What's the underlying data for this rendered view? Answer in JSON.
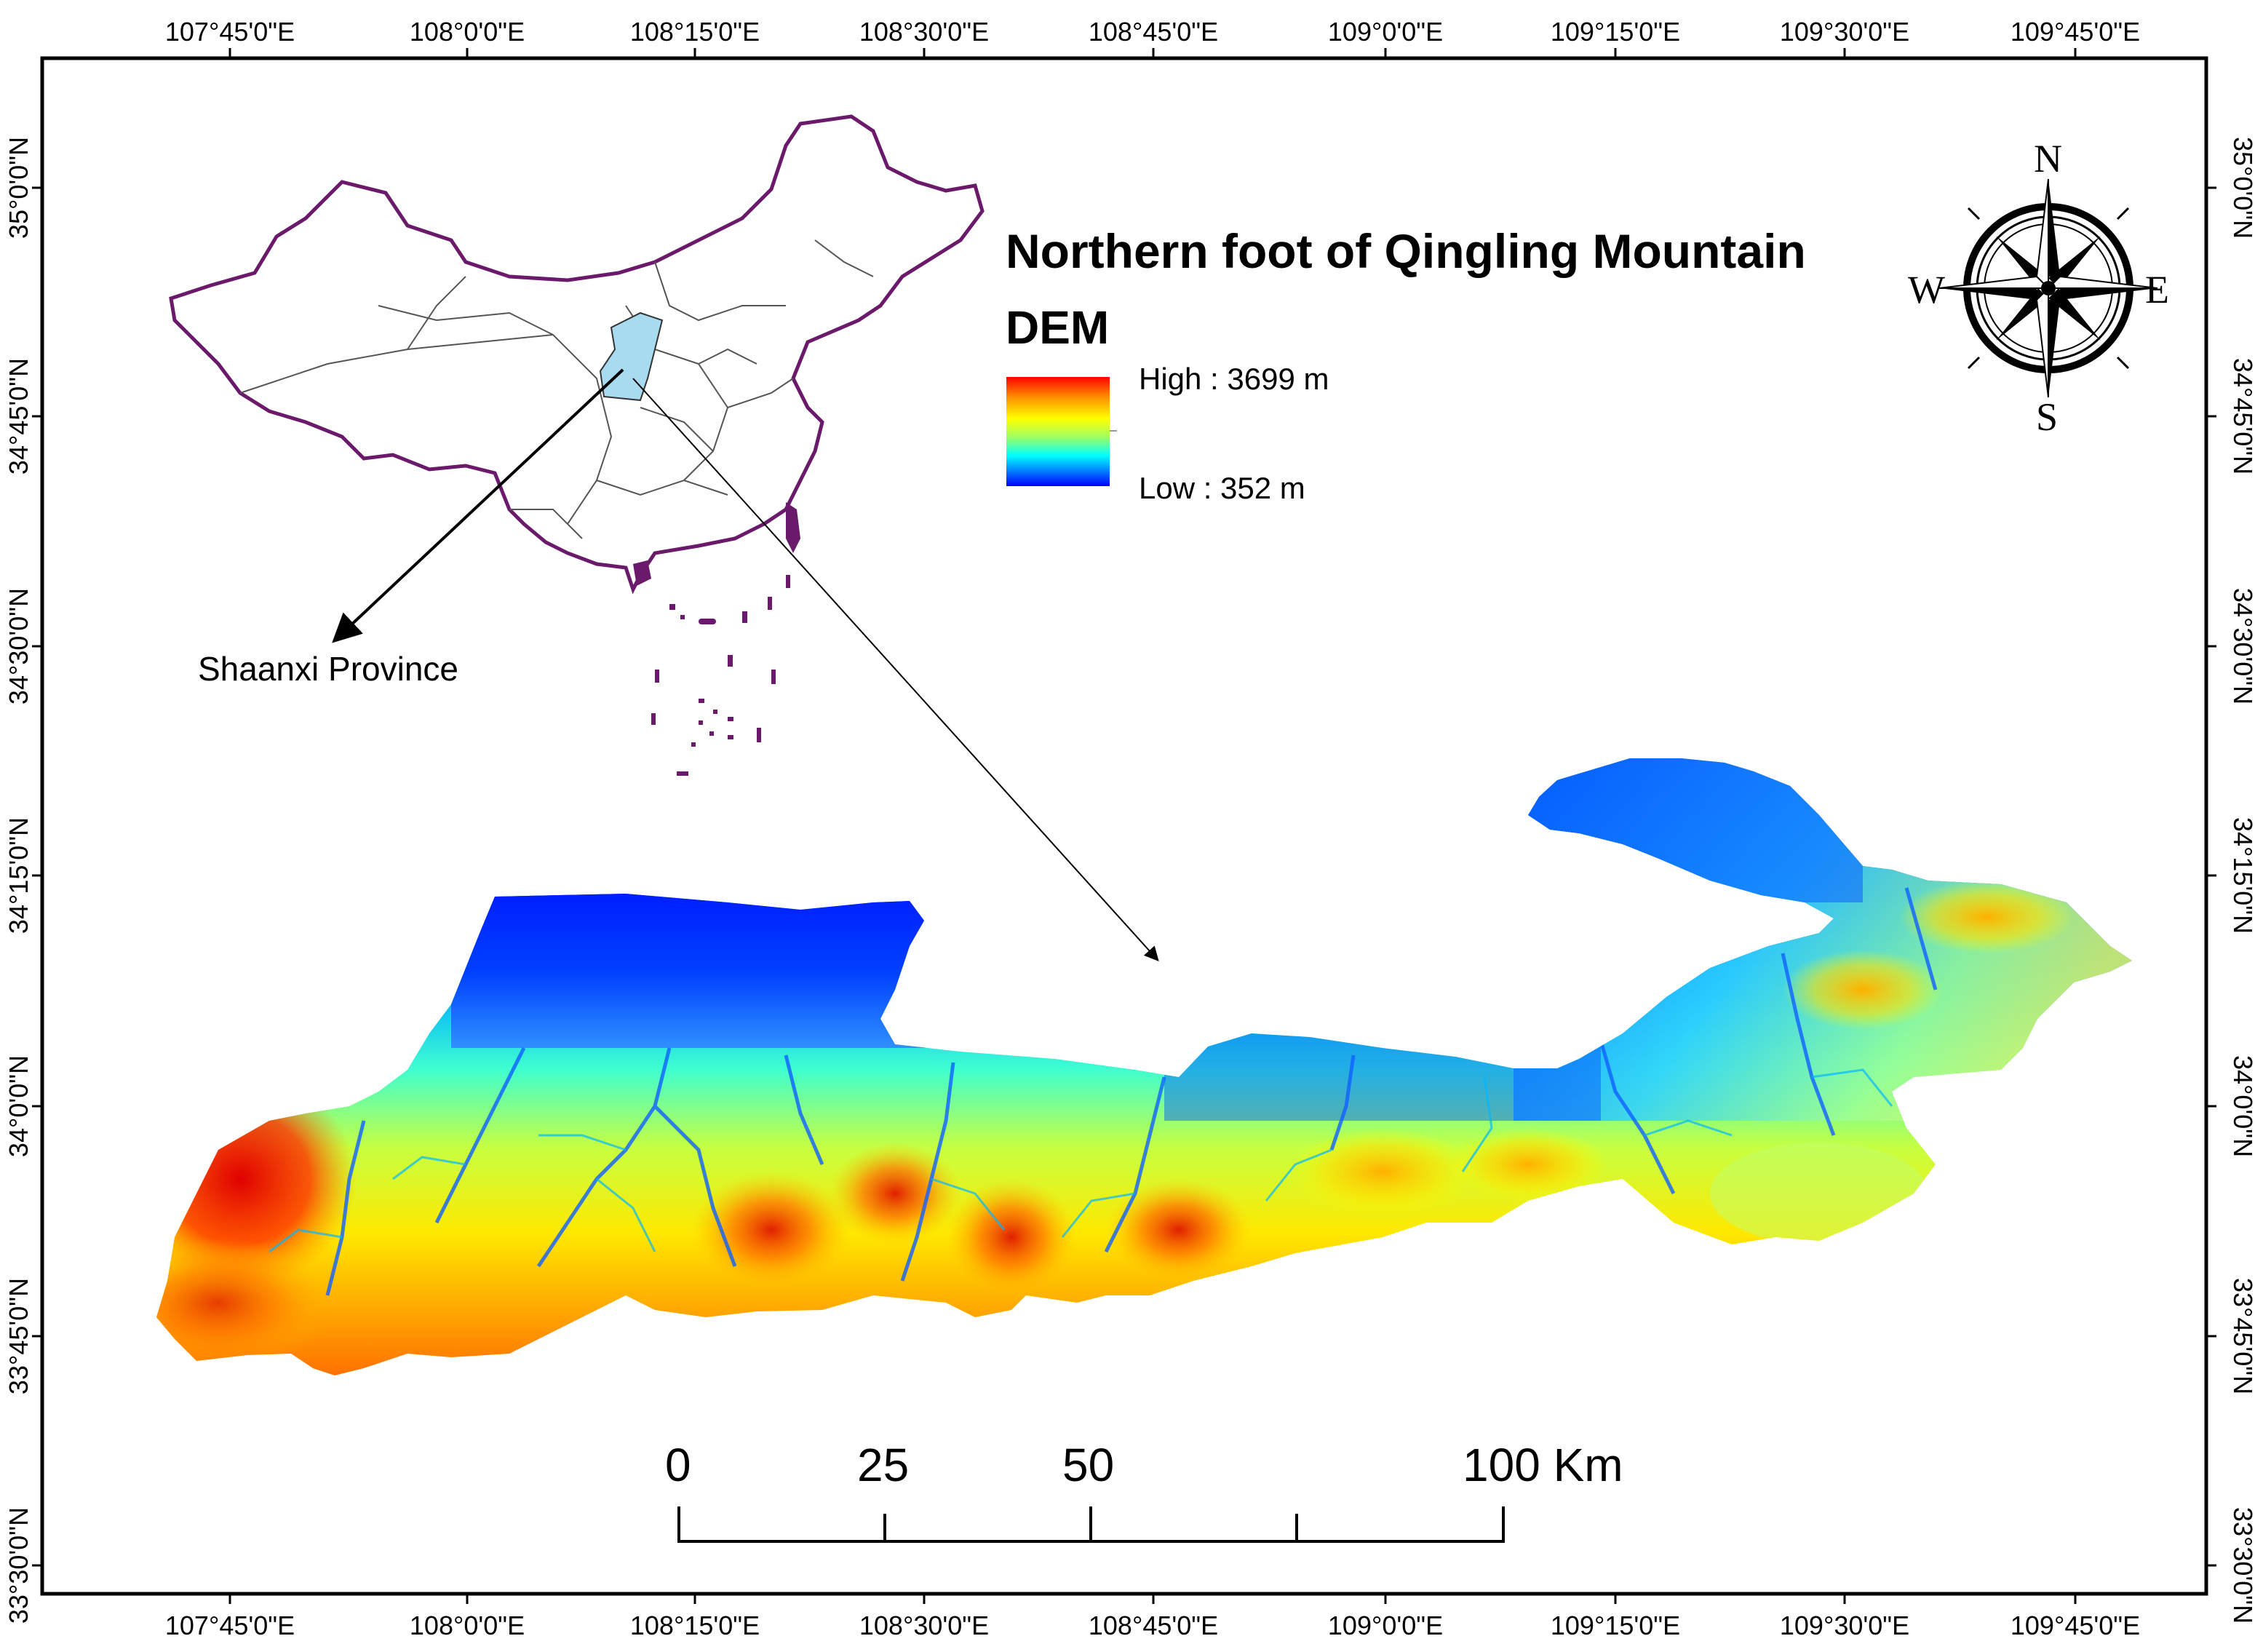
{
  "map": {
    "title": "Northern foot of Qingling Mountain",
    "subtitle": "DEM",
    "legend": {
      "high_label": "High : 3699 m",
      "low_label": "Low : 352 m",
      "color_ramp": [
        "#ff0000",
        "#ff8c00",
        "#ffff00",
        "#a0ff60",
        "#00ffff",
        "#0080ff",
        "#0000ff"
      ]
    },
    "graticule": {
      "top_labels": [
        "107°45'0\"E",
        "108°0'0\"E",
        "108°15'0\"E",
        "108°30'0\"E",
        "108°45'0\"E",
        "109°0'0\"E",
        "109°15'0\"E",
        "109°30'0\"E",
        "109°45'0\"E"
      ],
      "bottom_labels": [
        "107°45'0\"E",
        "108°0'0\"E",
        "108°15'0\"E",
        "108°30'0\"E",
        "108°45'0\"E",
        "109°0'0\"E",
        "109°15'0\"E",
        "109°30'0\"E",
        "109°45'0\"E"
      ],
      "left_labels": [
        "35°0'0\"N",
        "34°45'0\"N",
        "34°30'0\"N",
        "34°15'0\"N",
        "34°0'0\"N",
        "33°45'0\"N",
        "33°30'0\"N"
      ],
      "right_labels": [
        "35°0'0\"N",
        "34°45'0\"N",
        "34°30'0\"N",
        "34°15'0\"N",
        "34°0'0\"N",
        "33°45'0\"N",
        "33°30'0\"N"
      ]
    },
    "compass": {
      "north": "N",
      "south": "S",
      "east": "E",
      "west": "W"
    },
    "inset": {
      "label": "Shaanxi Province",
      "country_outline_color": "#6b1a6b",
      "province_fill": "#a8daf0"
    },
    "scale_bar": {
      "labels": [
        "0",
        "25",
        "50",
        "100 Km"
      ]
    }
  }
}
